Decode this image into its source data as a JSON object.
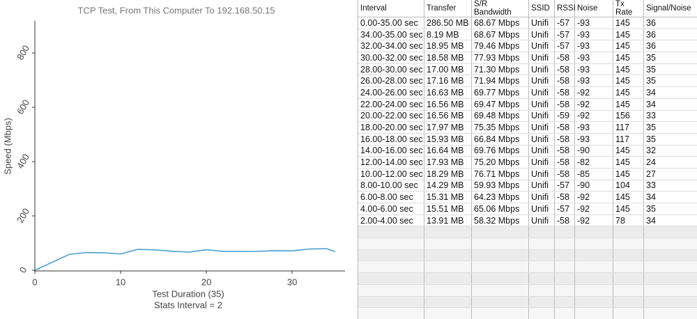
{
  "chart_data": {
    "type": "line",
    "title": "TCP Test,  From This Computer To 192.168.50.15",
    "y_label": "Speed (Mbps)",
    "x_label": "Test Duration (35)",
    "subtitle": "Stats Interval = 2",
    "x": [
      0,
      4,
      6,
      8,
      10,
      12,
      14,
      16,
      18,
      20,
      22,
      24,
      26,
      28,
      30,
      32,
      34,
      35
    ],
    "values": [
      0,
      58.32,
      65.06,
      64.23,
      59.93,
      76.71,
      75.2,
      69.76,
      66.84,
      75.35,
      69.48,
      69.47,
      69.77,
      71.94,
      71.3,
      77.93,
      79.46,
      68.67
    ],
    "color": "#4a9fd4",
    "xlim": [
      0,
      36
    ],
    "ylim": [
      0,
      918
    ],
    "xticks": [
      0,
      10,
      20,
      30
    ],
    "yticks": [
      0,
      200,
      400,
      600,
      800
    ]
  },
  "table": {
    "headers": [
      "Interval",
      "Transfer",
      "S/R Bandwidth",
      "SSID",
      "RSSI",
      "Noise",
      "Tx Rate",
      "Signal/Noise"
    ],
    "rows": [
      [
        "0.00-35.00 sec",
        "286.50 MB",
        "68.67 Mbps",
        "Unifi",
        "-57",
        "-93",
        "145",
        "36"
      ],
      [
        "34.00-35.00 sec",
        "8.19 MB",
        "68.67 Mbps",
        "Unifi",
        "-57",
        "-93",
        "145",
        "36"
      ],
      [
        "32.00-34.00 sec",
        "18.95 MB",
        "79.46 Mbps",
        "Unifi",
        "-57",
        "-93",
        "145",
        "36"
      ],
      [
        "30.00-32.00 sec",
        "18.58 MB",
        "77.93 Mbps",
        "Unifi",
        "-58",
        "-93",
        "145",
        "35"
      ],
      [
        "28.00-30.00 sec",
        "17.00 MB",
        "71.30 Mbps",
        "Unifi",
        "-58",
        "-93",
        "145",
        "35"
      ],
      [
        "26.00-28.00 sec",
        "17.16 MB",
        "71.94 Mbps",
        "Unifi",
        "-58",
        "-93",
        "145",
        "35"
      ],
      [
        "24.00-26.00 sec",
        "16.63 MB",
        "69.77 Mbps",
        "Unifi",
        "-58",
        "-92",
        "145",
        "34"
      ],
      [
        "22.00-24.00 sec",
        "16.56 MB",
        "69.47 Mbps",
        "Unifi",
        "-58",
        "-92",
        "145",
        "34"
      ],
      [
        "20.00-22.00 sec",
        "16.56 MB",
        "69.48 Mbps",
        "Unifi",
        "-59",
        "-92",
        "156",
        "33"
      ],
      [
        "18.00-20.00 sec",
        "17.97 MB",
        "75.35 Mbps",
        "Unifi",
        "-58",
        "-93",
        "117",
        "35"
      ],
      [
        "16.00-18.00 sec",
        "15.93 MB",
        "66.84 Mbps",
        "Unifi",
        "-58",
        "-93",
        "117",
        "35"
      ],
      [
        "14.00-16.00 sec",
        "16.64 MB",
        "69.76 Mbps",
        "Unifi",
        "-58",
        "-90",
        "145",
        "32"
      ],
      [
        "12.00-14.00 sec",
        "17.93 MB",
        "75.20 Mbps",
        "Unifi",
        "-58",
        "-82",
        "145",
        "24"
      ],
      [
        "10.00-12.00 sec",
        "18.29 MB",
        "76.71 Mbps",
        "Unifi",
        "-58",
        "-85",
        "145",
        "27"
      ],
      [
        "8.00-10.00 sec",
        "14.29 MB",
        "59.93 Mbps",
        "Unifi",
        "-57",
        "-90",
        "104",
        "33"
      ],
      [
        "6.00-8.00 sec",
        "15.31 MB",
        "64.23 Mbps",
        "Unifi",
        "-58",
        "-92",
        "145",
        "34"
      ],
      [
        "4.00-6.00 sec",
        "15.51 MB",
        "65.06 Mbps",
        "Unifi",
        "-57",
        "-92",
        "145",
        "35"
      ],
      [
        "2.00-4.00 sec",
        "13.91 MB",
        "58.32 Mbps",
        "Unifi",
        "-58",
        "-92",
        "78",
        "34"
      ]
    ]
  }
}
